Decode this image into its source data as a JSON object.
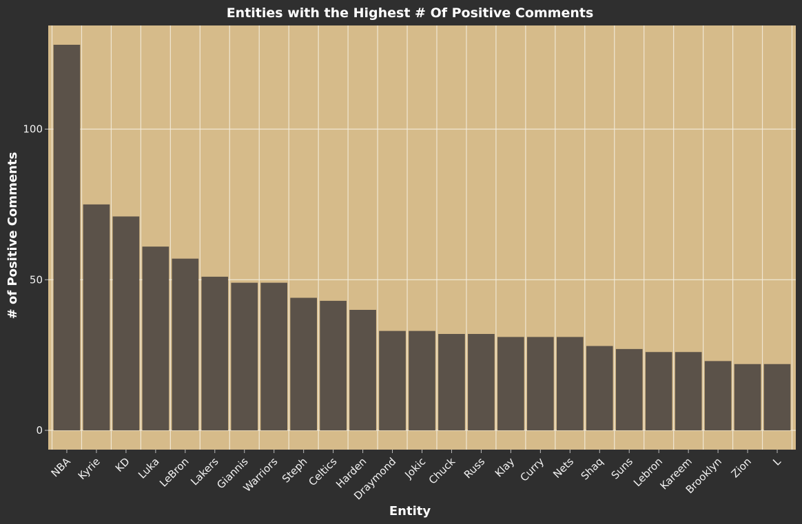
{
  "chart_data": {
    "type": "bar",
    "title": "Entities with the Highest # Of Positive Comments",
    "xlabel": "Entity",
    "ylabel": "# of Positive Comments",
    "categories": [
      "NBA",
      "Kyrie",
      "KD",
      "Luka",
      "LeBron",
      "Lakers",
      "Giannis",
      "Warriors",
      "Steph",
      "Celtics",
      "Harden",
      "Draymond",
      "Jokic",
      "Chuck",
      "Russ",
      "Klay",
      "Curry",
      "Nets",
      "Shaq",
      "Suns",
      "Lebron",
      "Kareem",
      "Brooklyn",
      "Zion",
      "L"
    ],
    "values": [
      128,
      75,
      71,
      61,
      57,
      51,
      49,
      49,
      44,
      43,
      40,
      33,
      33,
      32,
      32,
      31,
      31,
      31,
      28,
      27,
      26,
      26,
      23,
      22,
      22
    ],
    "ylim": [
      -6.4,
      134.4
    ],
    "yticks": [
      0,
      50,
      100
    ],
    "grid": true,
    "colors": {
      "background": "#2f2f2f",
      "plot_area": "#d6bb8a",
      "bar": "#5b5249",
      "grid": "#f3ecdc"
    }
  }
}
